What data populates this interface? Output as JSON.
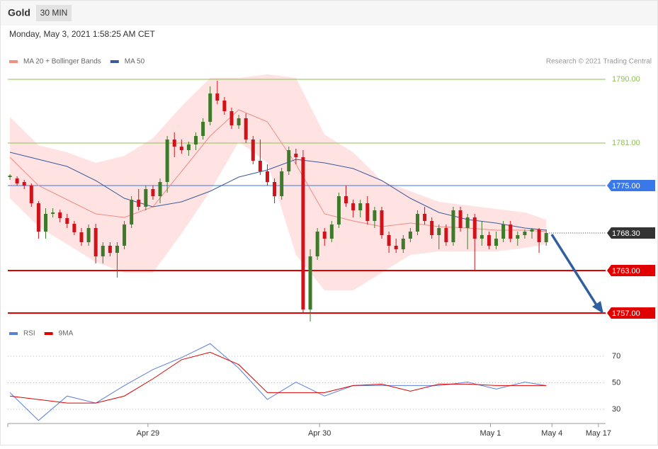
{
  "chart_data": {
    "type": "candlestick",
    "title": "Gold",
    "timeframe": "30 MIN",
    "timestamp": "Monday, May 3, 2021 1:58:25 AM CET",
    "credit": "Research © 2021 Trading Central",
    "up_color": "#3d7a2a",
    "down_color": "#d0121b",
    "xlim": [
      -0.3,
      83.3
    ],
    "xticks": [
      {
        "value": 19.3,
        "label": "Apr 29"
      },
      {
        "value": 43.3,
        "label": "Apr 30"
      },
      {
        "value": 67.2,
        "label": "May 1"
      },
      {
        "value": 75.8,
        "label": "May 4"
      },
      {
        "value": 82.3,
        "label": "May 17"
      }
    ],
    "ylim": [
      1755.7,
      1791.7
    ],
    "levels": [
      {
        "value": 1790,
        "label": "1790.00",
        "color": "#8cc152",
        "boxed": false,
        "dotted": false
      },
      {
        "value": 1781,
        "label": "1781.00",
        "color": "#8cc152",
        "boxed": false,
        "dotted": false
      },
      {
        "value": 1775,
        "label": "1775.00",
        "color": "#3b78e7",
        "boxed": true,
        "dotted": false
      },
      {
        "value": 1768.3,
        "label": "1768.30",
        "color": "#333333",
        "boxed": true,
        "dotted": true
      },
      {
        "value": 1763,
        "label": "1763.00",
        "color": "#e00000",
        "boxed": true,
        "dotted": false
      },
      {
        "value": 1757,
        "label": "1757.00",
        "color": "#e00000",
        "boxed": true,
        "dotted": false
      }
    ],
    "x": [
      0,
      1,
      2,
      3,
      4,
      5,
      6,
      7,
      8,
      9,
      10,
      11,
      12,
      13,
      14,
      15,
      16,
      17,
      18,
      19,
      20,
      21,
      22,
      23,
      24,
      25,
      26,
      27,
      28,
      29,
      30,
      31,
      32,
      33,
      34,
      35,
      36,
      37,
      38,
      39,
      40,
      41,
      42,
      43,
      44,
      45,
      46,
      47,
      48,
      49,
      50,
      51,
      52,
      53,
      54,
      55,
      56,
      57,
      58,
      59,
      60,
      61,
      62,
      63,
      64,
      65,
      66,
      67,
      68,
      69,
      70,
      71,
      72,
      73,
      74,
      75
    ],
    "candles": [
      [
        1776.2,
        1776.6,
        1775.8,
        1776.4
      ],
      [
        1776,
        1776.3,
        1775,
        1775.3
      ],
      [
        1775.5,
        1775.8,
        1774.5,
        1775
      ],
      [
        1775,
        1775.3,
        1772,
        1772.5
      ],
      [
        1772.5,
        1772.8,
        1767.5,
        1768.5
      ],
      [
        1768.5,
        1771.8,
        1767.5,
        1771
      ],
      [
        1771,
        1771.8,
        1770.5,
        1771.2
      ],
      [
        1771.2,
        1771.6,
        1769.8,
        1770.4
      ],
      [
        1770.4,
        1771,
        1769,
        1769.6
      ],
      [
        1769.6,
        1770,
        1768,
        1768.4
      ],
      [
        1768.4,
        1769,
        1766.5,
        1767
      ],
      [
        1767,
        1769.5,
        1766.5,
        1769
      ],
      [
        1769,
        1769.6,
        1764,
        1765
      ],
      [
        1765,
        1767,
        1764,
        1766.5
      ],
      [
        1766.5,
        1767,
        1765,
        1765.5
      ],
      [
        1765.5,
        1767,
        1762,
        1766.5
      ],
      [
        1766.5,
        1770,
        1766,
        1769.5
      ],
      [
        1769.5,
        1773.5,
        1769,
        1773
      ],
      [
        1773,
        1774.5,
        1771.5,
        1772
      ],
      [
        1772,
        1775,
        1771.5,
        1774.5
      ],
      [
        1774.5,
        1775,
        1773,
        1773.5
      ],
      [
        1773.5,
        1776,
        1772.5,
        1775.5
      ],
      [
        1775.5,
        1782,
        1774,
        1781.5
      ],
      [
        1781.5,
        1782.5,
        1779,
        1780.5
      ],
      [
        1780.5,
        1781.5,
        1779.5,
        1780
      ],
      [
        1780,
        1781.2,
        1779.2,
        1780.8
      ],
      [
        1780.8,
        1782.5,
        1780,
        1782
      ],
      [
        1782,
        1784.5,
        1781.5,
        1784
      ],
      [
        1784,
        1789,
        1783.5,
        1788
      ],
      [
        1788,
        1789.8,
        1786.5,
        1787
      ],
      [
        1787,
        1787.5,
        1785,
        1785.5
      ],
      [
        1785.5,
        1786,
        1783,
        1783.5
      ],
      [
        1783.5,
        1785,
        1783,
        1784.5
      ],
      [
        1784.5,
        1785.2,
        1781,
        1781.5
      ],
      [
        1781.5,
        1782,
        1778,
        1778.5
      ],
      [
        1778.5,
        1781.5,
        1776.5,
        1777
      ],
      [
        1777,
        1778,
        1775,
        1775.5
      ],
      [
        1775.5,
        1776,
        1772.5,
        1773.5
      ],
      [
        1773.5,
        1777.5,
        1773,
        1777
      ],
      [
        1777,
        1780.5,
        1776.5,
        1780
      ],
      [
        1779.5,
        1780.2,
        1778,
        1779
      ],
      [
        1779,
        1780,
        1757,
        1757.5
      ],
      [
        1757.5,
        1766,
        1755.8,
        1765
      ],
      [
        1765,
        1769,
        1764.5,
        1768.5
      ],
      [
        1768.5,
        1769,
        1766.5,
        1767.5
      ],
      [
        1767.5,
        1770,
        1767,
        1769.5
      ],
      [
        1769.5,
        1774,
        1769,
        1773.5
      ],
      [
        1773.5,
        1775,
        1772,
        1772.5
      ],
      [
        1772.5,
        1773,
        1770.5,
        1771.5
      ],
      [
        1771.5,
        1773,
        1770.5,
        1772.5
      ],
      [
        1772.5,
        1773.5,
        1769.5,
        1770
      ],
      [
        1770,
        1772,
        1769,
        1771.5
      ],
      [
        1771.5,
        1772,
        1767.5,
        1768
      ],
      [
        1768,
        1768.5,
        1765.5,
        1766.5
      ],
      [
        1766.5,
        1767.5,
        1765.5,
        1766
      ],
      [
        1766,
        1768,
        1765.5,
        1767.5
      ],
      [
        1767.5,
        1769,
        1767,
        1768.5
      ],
      [
        1768.5,
        1771.5,
        1768,
        1771
      ],
      [
        1771,
        1772,
        1769.5,
        1770
      ],
      [
        1770,
        1770.5,
        1767.5,
        1768
      ],
      [
        1768,
        1769.5,
        1766,
        1769
      ],
      [
        1769,
        1769.5,
        1766.5,
        1767
      ],
      [
        1767,
        1772,
        1766.5,
        1771.5
      ],
      [
        1771.5,
        1772,
        1768.5,
        1769
      ],
      [
        1769,
        1771,
        1766,
        1770.5
      ],
      [
        1770.5,
        1771,
        1763,
        1767.5
      ],
      [
        1767.5,
        1770,
        1766.5,
        1768
      ],
      [
        1768,
        1768.5,
        1766,
        1766.5
      ],
      [
        1766.5,
        1768.5,
        1766,
        1767.5
      ],
      [
        1767.5,
        1770,
        1767,
        1769.5
      ],
      [
        1769.5,
        1770,
        1767,
        1767.5
      ],
      [
        1767.5,
        1768.5,
        1766.5,
        1768
      ],
      [
        1768,
        1768.8,
        1767.5,
        1768.5
      ],
      [
        1768.5,
        1769,
        1767.5,
        1768.8
      ],
      [
        1768.8,
        1769,
        1765.5,
        1767
      ],
      [
        1767,
        1768.8,
        1766.5,
        1768.3
      ]
    ],
    "overlays": {
      "x": [
        0,
        4,
        8,
        12,
        16,
        20,
        24,
        28,
        32,
        36,
        40,
        44,
        48,
        52,
        56,
        60,
        64,
        68,
        72,
        75
      ],
      "series": [
        {
          "name": "MA 20 + Bollinger Bands",
          "color": "#f28b82",
          "band_color": "#ffe3e3",
          "values": [
            1779,
            1775,
            1773,
            1771,
            1770.5,
            1772,
            1777,
            1782,
            1785.7,
            1784,
            1778,
            1771,
            1770,
            1769.2,
            1769.7,
            1769.2,
            1769,
            1768.7,
            1768.7,
            1768.5
          ],
          "upper": [
            1784.7,
            1780.7,
            1779.7,
            1778.2,
            1779.2,
            1781.7,
            1786.2,
            1790.2,
            1790.2,
            1790.7,
            1790.2,
            1782.2,
            1779.7,
            1775.7,
            1774.2,
            1772.7,
            1772.2,
            1771.7,
            1771.2,
            1770.2
          ],
          "lower": [
            1773.2,
            1769.2,
            1766.7,
            1764.2,
            1762.7,
            1762.7,
            1768.2,
            1774.2,
            1781.2,
            1778.2,
            1765.2,
            1760.2,
            1760.2,
            1762.7,
            1765.2,
            1765.7,
            1765.7,
            1765.7,
            1766.2,
            1766.7
          ]
        },
        {
          "name": "MA 50",
          "color": "#3a5a9a",
          "values": [
            1779.7,
            1778.7,
            1777.7,
            1775.7,
            1773.2,
            1772,
            1772.7,
            1774.2,
            1776.2,
            1777.2,
            1778.7,
            1778.2,
            1777.4,
            1775.7,
            1773.2,
            1771.2,
            1770.2,
            1769.7,
            1769,
            1768.7
          ]
        }
      ]
    },
    "rsi": {
      "type": "line",
      "ylim": [
        19.3,
        82.3
      ],
      "yticks": [
        70,
        50,
        30
      ],
      "x": [
        0,
        4,
        8,
        12,
        16,
        20,
        24,
        28,
        32,
        36,
        40,
        44,
        48,
        52,
        56,
        60,
        64,
        68,
        72,
        75
      ],
      "series": [
        {
          "name": "RSI",
          "color": "#5b7fdd",
          "values": [
            42.6,
            21.6,
            40,
            34.7,
            47.9,
            60,
            69,
            79.5,
            61,
            37.4,
            50.5,
            40,
            47.9,
            47.9,
            47.9,
            47.9,
            50.5,
            45.3,
            50.5,
            47.9
          ]
        },
        {
          "name": "9MA",
          "color": "#e00000",
          "values": [
            40,
            37.4,
            34.7,
            34.7,
            40,
            53,
            67.4,
            73,
            63.7,
            42.6,
            42.6,
            42.6,
            47.9,
            49,
            43.7,
            49,
            49,
            47.9,
            47.9,
            47.9
          ]
        }
      ]
    }
  }
}
